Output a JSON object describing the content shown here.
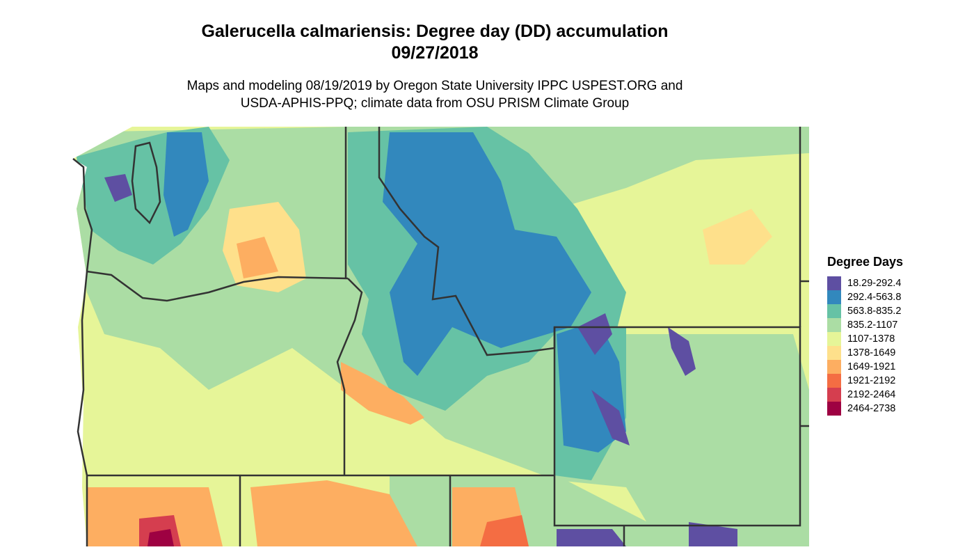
{
  "title_line1": "Galerucella calmariensis: Degree day (DD) accumulation",
  "title_line2": "09/27/2018",
  "subtitle_line1": "Maps and modeling 08/19/2019 by Oregon State University IPPC USPEST.ORG and",
  "subtitle_line2": "USDA-APHIS-PPQ; climate data from OSU PRISM Climate Group",
  "legend": {
    "title": "Degree Days",
    "items": [
      {
        "label": "18.29-292.4",
        "color": "#5E4FA2"
      },
      {
        "label": "292.4-563.8",
        "color": "#3288BD"
      },
      {
        "label": "563.8-835.2",
        "color": "#66C2A5"
      },
      {
        "label": "835.2-1107",
        "color": "#ABDDA4"
      },
      {
        "label": "1107-1378",
        "color": "#E6F598"
      },
      {
        "label": "1378-1649",
        "color": "#FEE08B"
      },
      {
        "label": "1649-1921",
        "color": "#FDAE61"
      },
      {
        "label": "1921-2192",
        "color": "#F46D43"
      },
      {
        "label": "2192-2464",
        "color": "#D53E4F"
      },
      {
        "label": "2464-2738",
        "color": "#9E0142"
      }
    ]
  },
  "border_color": "#333333"
}
